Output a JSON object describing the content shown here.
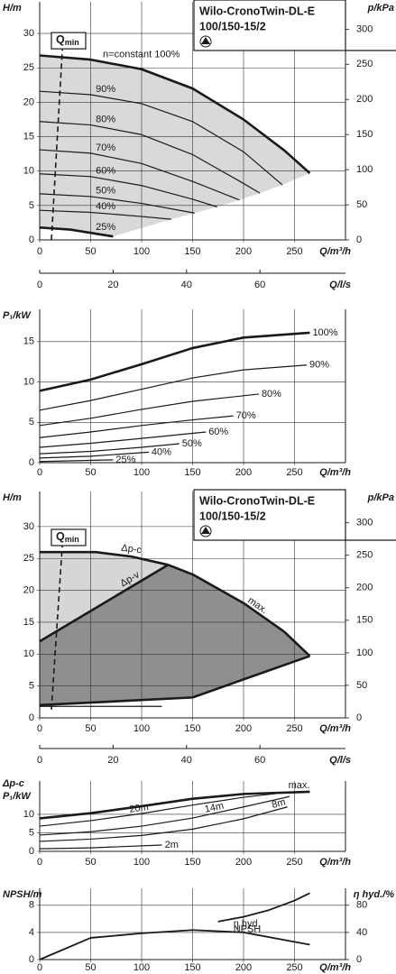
{
  "chart_data": [
    {
      "type": "line",
      "title": [
        "Wilo-CronoTwin-DL-E",
        "100/150-15/2"
      ],
      "ylabel": "H/m",
      "y2label": "p/kPa",
      "xlabel": "Q/m³/h",
      "x2label": "Q/l/s",
      "xlim": [
        0,
        300
      ],
      "xticks": [
        0,
        50,
        100,
        150,
        200,
        250
      ],
      "ylim": [
        0,
        34.6
      ],
      "yticks": [
        0,
        5,
        10,
        15,
        20,
        25,
        30
      ],
      "y2lim": [
        0,
        339
      ],
      "y2ticks": [
        0,
        50,
        100,
        150,
        200,
        250,
        300
      ],
      "x2lim": [
        0,
        83.3
      ],
      "x2ticks": [
        0,
        20,
        40,
        60
      ],
      "grid": true,
      "color": "#1a1a1a",
      "fill": [
        "#d9d9d9"
      ],
      "qmin": {
        "label": "Q",
        "subscript": "min",
        "x": [
          11.5,
          23
        ],
        "y": [
          0,
          29.6
        ]
      },
      "series": [
        {
          "name": "n=constant 100%",
          "x": [
            0,
            50,
            100,
            150,
            200,
            240,
            265
          ],
          "values": [
            26.8,
            26.2,
            24.8,
            22,
            17.5,
            13,
            9.7
          ]
        },
        {
          "name": "90%",
          "x": [
            0,
            50,
            100,
            150,
            200,
            238
          ],
          "values": [
            21.6,
            21.1,
            19.8,
            17.2,
            12.8,
            8.0
          ]
        },
        {
          "name": "80%",
          "x": [
            0,
            50,
            100,
            150,
            200,
            216
          ],
          "values": [
            17.2,
            16.7,
            15.3,
            12.4,
            8.2,
            6.8
          ]
        },
        {
          "name": "70%",
          "x": [
            0,
            50,
            100,
            150,
            196
          ],
          "values": [
            13.1,
            12.6,
            11.1,
            8.5,
            5.8
          ]
        },
        {
          "name": "60%",
          "x": [
            0,
            50,
            100,
            150,
            174
          ],
          "values": [
            9.6,
            9.2,
            7.9,
            5.9,
            4.8
          ]
        },
        {
          "name": "50%",
          "x": [
            0,
            50,
            100,
            152
          ],
          "values": [
            6.7,
            6.3,
            5.3,
            3.9
          ]
        },
        {
          "name": "40%",
          "x": [
            0,
            50,
            100,
            129
          ],
          "values": [
            4.3,
            4.0,
            3.4,
            3.0
          ]
        },
        {
          "name": "25%",
          "x": [
            0,
            30,
            72
          ],
          "values": [
            1.8,
            1.5,
            0.5
          ]
        }
      ]
    },
    {
      "type": "line",
      "ylabel": "P₁/kW",
      "xlabel": "Q/m³/h",
      "xlim": [
        0,
        300
      ],
      "xticks": [
        0,
        50,
        100,
        150,
        200,
        250
      ],
      "ylim": [
        0,
        19
      ],
      "yticks": [
        0,
        5,
        10,
        15
      ],
      "grid": true,
      "color": "#1a1a1a",
      "series": [
        {
          "name": "100%",
          "x": [
            0,
            50,
            100,
            150,
            200,
            265
          ],
          "values": [
            8.9,
            10.3,
            12.2,
            14.2,
            15.5,
            16.1
          ]
        },
        {
          "name": "90%",
          "x": [
            0,
            50,
            100,
            150,
            200,
            262
          ],
          "values": [
            6.5,
            7.7,
            9.1,
            10.5,
            11.5,
            12.1
          ]
        },
        {
          "name": "80%",
          "x": [
            0,
            50,
            100,
            150,
            215
          ],
          "values": [
            4.6,
            5.5,
            6.6,
            7.6,
            8.5
          ]
        },
        {
          "name": "70%",
          "x": [
            0,
            50,
            100,
            150,
            190
          ],
          "values": [
            3.1,
            3.8,
            4.6,
            5.3,
            5.8
          ]
        },
        {
          "name": "60%",
          "x": [
            0,
            50,
            100,
            163
          ],
          "values": [
            1.9,
            2.4,
            3.0,
            3.8
          ]
        },
        {
          "name": "50%",
          "x": [
            0,
            50,
            100,
            137
          ],
          "values": [
            1.1,
            1.4,
            1.9,
            2.35
          ]
        },
        {
          "name": "40%",
          "x": [
            0,
            50,
            107
          ],
          "values": [
            0.57,
            0.8,
            1.3
          ]
        },
        {
          "name": "25%",
          "x": [
            0,
            72
          ],
          "values": [
            0.14,
            0.35
          ]
        }
      ]
    },
    {
      "type": "line",
      "title": [
        "Wilo-CronoTwin-DL-E",
        "100/150-15/2"
      ],
      "ylabel": "H/m",
      "y2label": "p/kPa",
      "xlabel": "Q/m³/h",
      "x2label": "Q/l/s",
      "xlim": [
        0,
        300
      ],
      "xticks": [
        0,
        50,
        100,
        150,
        200,
        250
      ],
      "ylim": [
        0,
        35.5
      ],
      "yticks": [
        0,
        5,
        10,
        15,
        20,
        25,
        30
      ],
      "y2lim": [
        0,
        348
      ],
      "y2ticks": [
        0,
        50,
        100,
        150,
        200,
        250,
        300
      ],
      "x2lim": [
        0,
        83.3
      ],
      "x2ticks": [
        0,
        20,
        40,
        60
      ],
      "grid": true,
      "color": "#1a1a1a",
      "fill": [
        "#d6d6d6",
        "#8f8f8f"
      ],
      "qmin": {
        "label": "Q",
        "subscript": "min",
        "x": [
          11.5,
          23
        ],
        "y": [
          1.3,
          29
        ]
      },
      "series": [
        {
          "name": "Δp-c",
          "x": [
            0,
            55,
            90,
            126
          ],
          "values": [
            26,
            26,
            25.3,
            24
          ]
        },
        {
          "name": "max.",
          "x": [
            126,
            150,
            200,
            240,
            265
          ],
          "values": [
            24,
            22.5,
            18,
            13.5,
            9.7
          ]
        },
        {
          "name": "Δp-v",
          "x": [
            0,
            126
          ],
          "values": [
            12,
            24
          ]
        },
        {
          "x": [
            0,
            150
          ],
          "values": [
            2,
            3.2
          ]
        },
        {
          "x": [
            150,
            265
          ],
          "values": [
            3.2,
            9.7
          ]
        },
        {
          "x": [
            0,
            120
          ],
          "values": [
            1.8,
            1.8
          ]
        }
      ]
    },
    {
      "type": "line",
      "ylabel": [
        "Δp-c",
        "P₁/kW"
      ],
      "xlabel": "Q/m³/h",
      "xlim": [
        0,
        300
      ],
      "xticks": [
        0,
        50,
        100,
        150,
        200,
        250
      ],
      "ylim": [
        0,
        19
      ],
      "yticks": [
        0,
        5,
        10
      ],
      "grid": true,
      "color": "#1a1a1a",
      "series": [
        {
          "name": "max.",
          "x": [
            0,
            50,
            100,
            150,
            200,
            265
          ],
          "values": [
            8.9,
            10.3,
            12.2,
            14.2,
            15.5,
            16.1
          ]
        },
        {
          "name": "20m",
          "x": [
            0,
            50,
            100,
            150,
            200,
            232
          ],
          "values": [
            6.8,
            8.3,
            10.2,
            12.5,
            14.6,
            15.6
          ]
        },
        {
          "name": "14m",
          "x": [
            0,
            50,
            100,
            150,
            200,
            245
          ],
          "values": [
            4.4,
            5.3,
            6.8,
            9,
            12,
            14.8
          ]
        },
        {
          "name": "8m",
          "x": [
            0,
            50,
            100,
            150,
            200,
            243
          ],
          "values": [
            2.7,
            3.3,
            4.3,
            6,
            8.8,
            12
          ]
        },
        {
          "name": "2m",
          "x": [
            0,
            50,
            120
          ],
          "values": [
            0.7,
            0.95,
            1.7
          ]
        }
      ]
    },
    {
      "type": "line",
      "ylabel": "NPSH/m",
      "y2label": "η hyd./%",
      "xlabel": "Q/m³/h",
      "xlim": [
        0,
        300
      ],
      "xticks": [
        0,
        50,
        100,
        150,
        200,
        250
      ],
      "ylim": [
        0,
        10.5
      ],
      "yticks": [
        0,
        4,
        8
      ],
      "y2lim": [
        0,
        105
      ],
      "y2ticks": [
        0,
        40,
        80
      ],
      "grid": true,
      "color": "#1a1a1a",
      "series": [
        {
          "name": "NPSH",
          "x": [
            175,
            200,
            225,
            250,
            265
          ],
          "values": [
            5.6,
            6.3,
            7.3,
            8.7,
            9.8
          ]
        },
        {
          "name": "η hyd.",
          "axis": "y2",
          "x": [
            0,
            50,
            100,
            150,
            200,
            265
          ],
          "values": [
            0,
            32,
            38.7,
            43.5,
            40,
            22
          ]
        }
      ]
    }
  ]
}
